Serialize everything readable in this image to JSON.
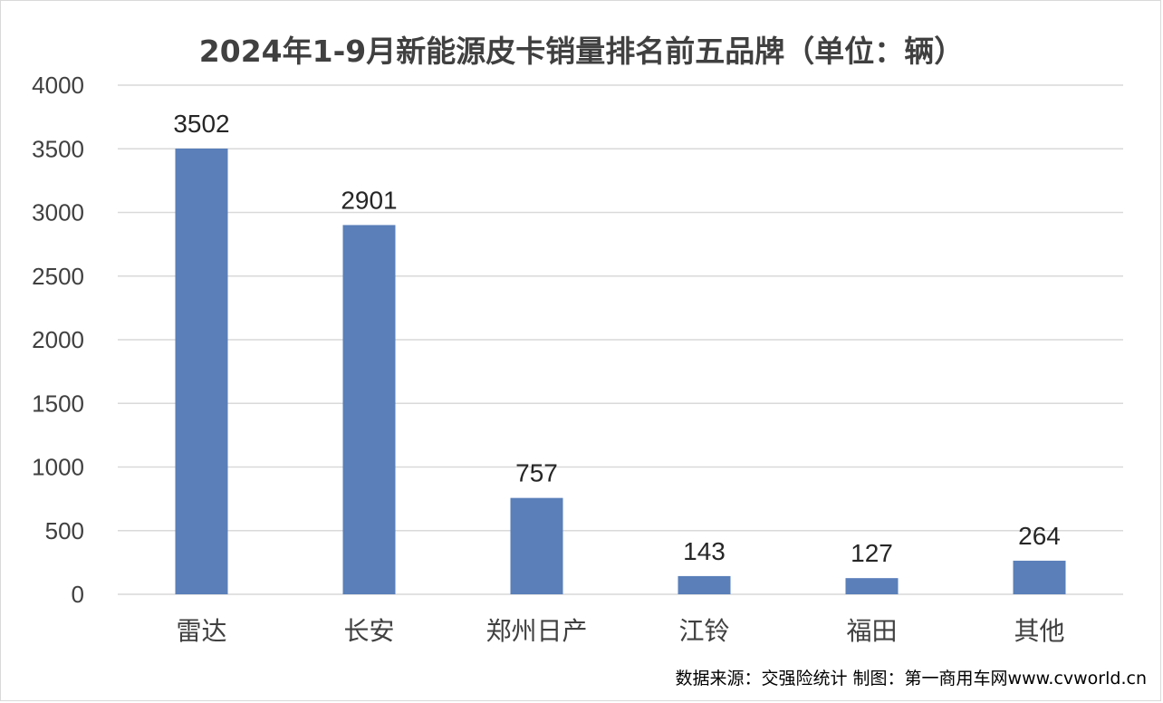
{
  "chart_data": {
    "type": "bar",
    "title": "2024年1-9月新能源皮卡销量排名前五品牌（单位：辆）",
    "categories": [
      "雷达",
      "长安",
      "郑州日产",
      "江铃",
      "福田",
      "其他"
    ],
    "values": [
      3502,
      2901,
      757,
      143,
      127,
      264
    ],
    "ylim": [
      0,
      4000
    ],
    "yticks": [
      0,
      500,
      1000,
      1500,
      2000,
      2500,
      3000,
      3500,
      4000
    ],
    "grid": true,
    "legend": "none",
    "bar_color": "#5a7fb9",
    "grid_color": "#d9d9d9"
  },
  "footer": {
    "source": "数据来源：交强险统计 制图：第一商用车网www.cvworld.cn"
  }
}
